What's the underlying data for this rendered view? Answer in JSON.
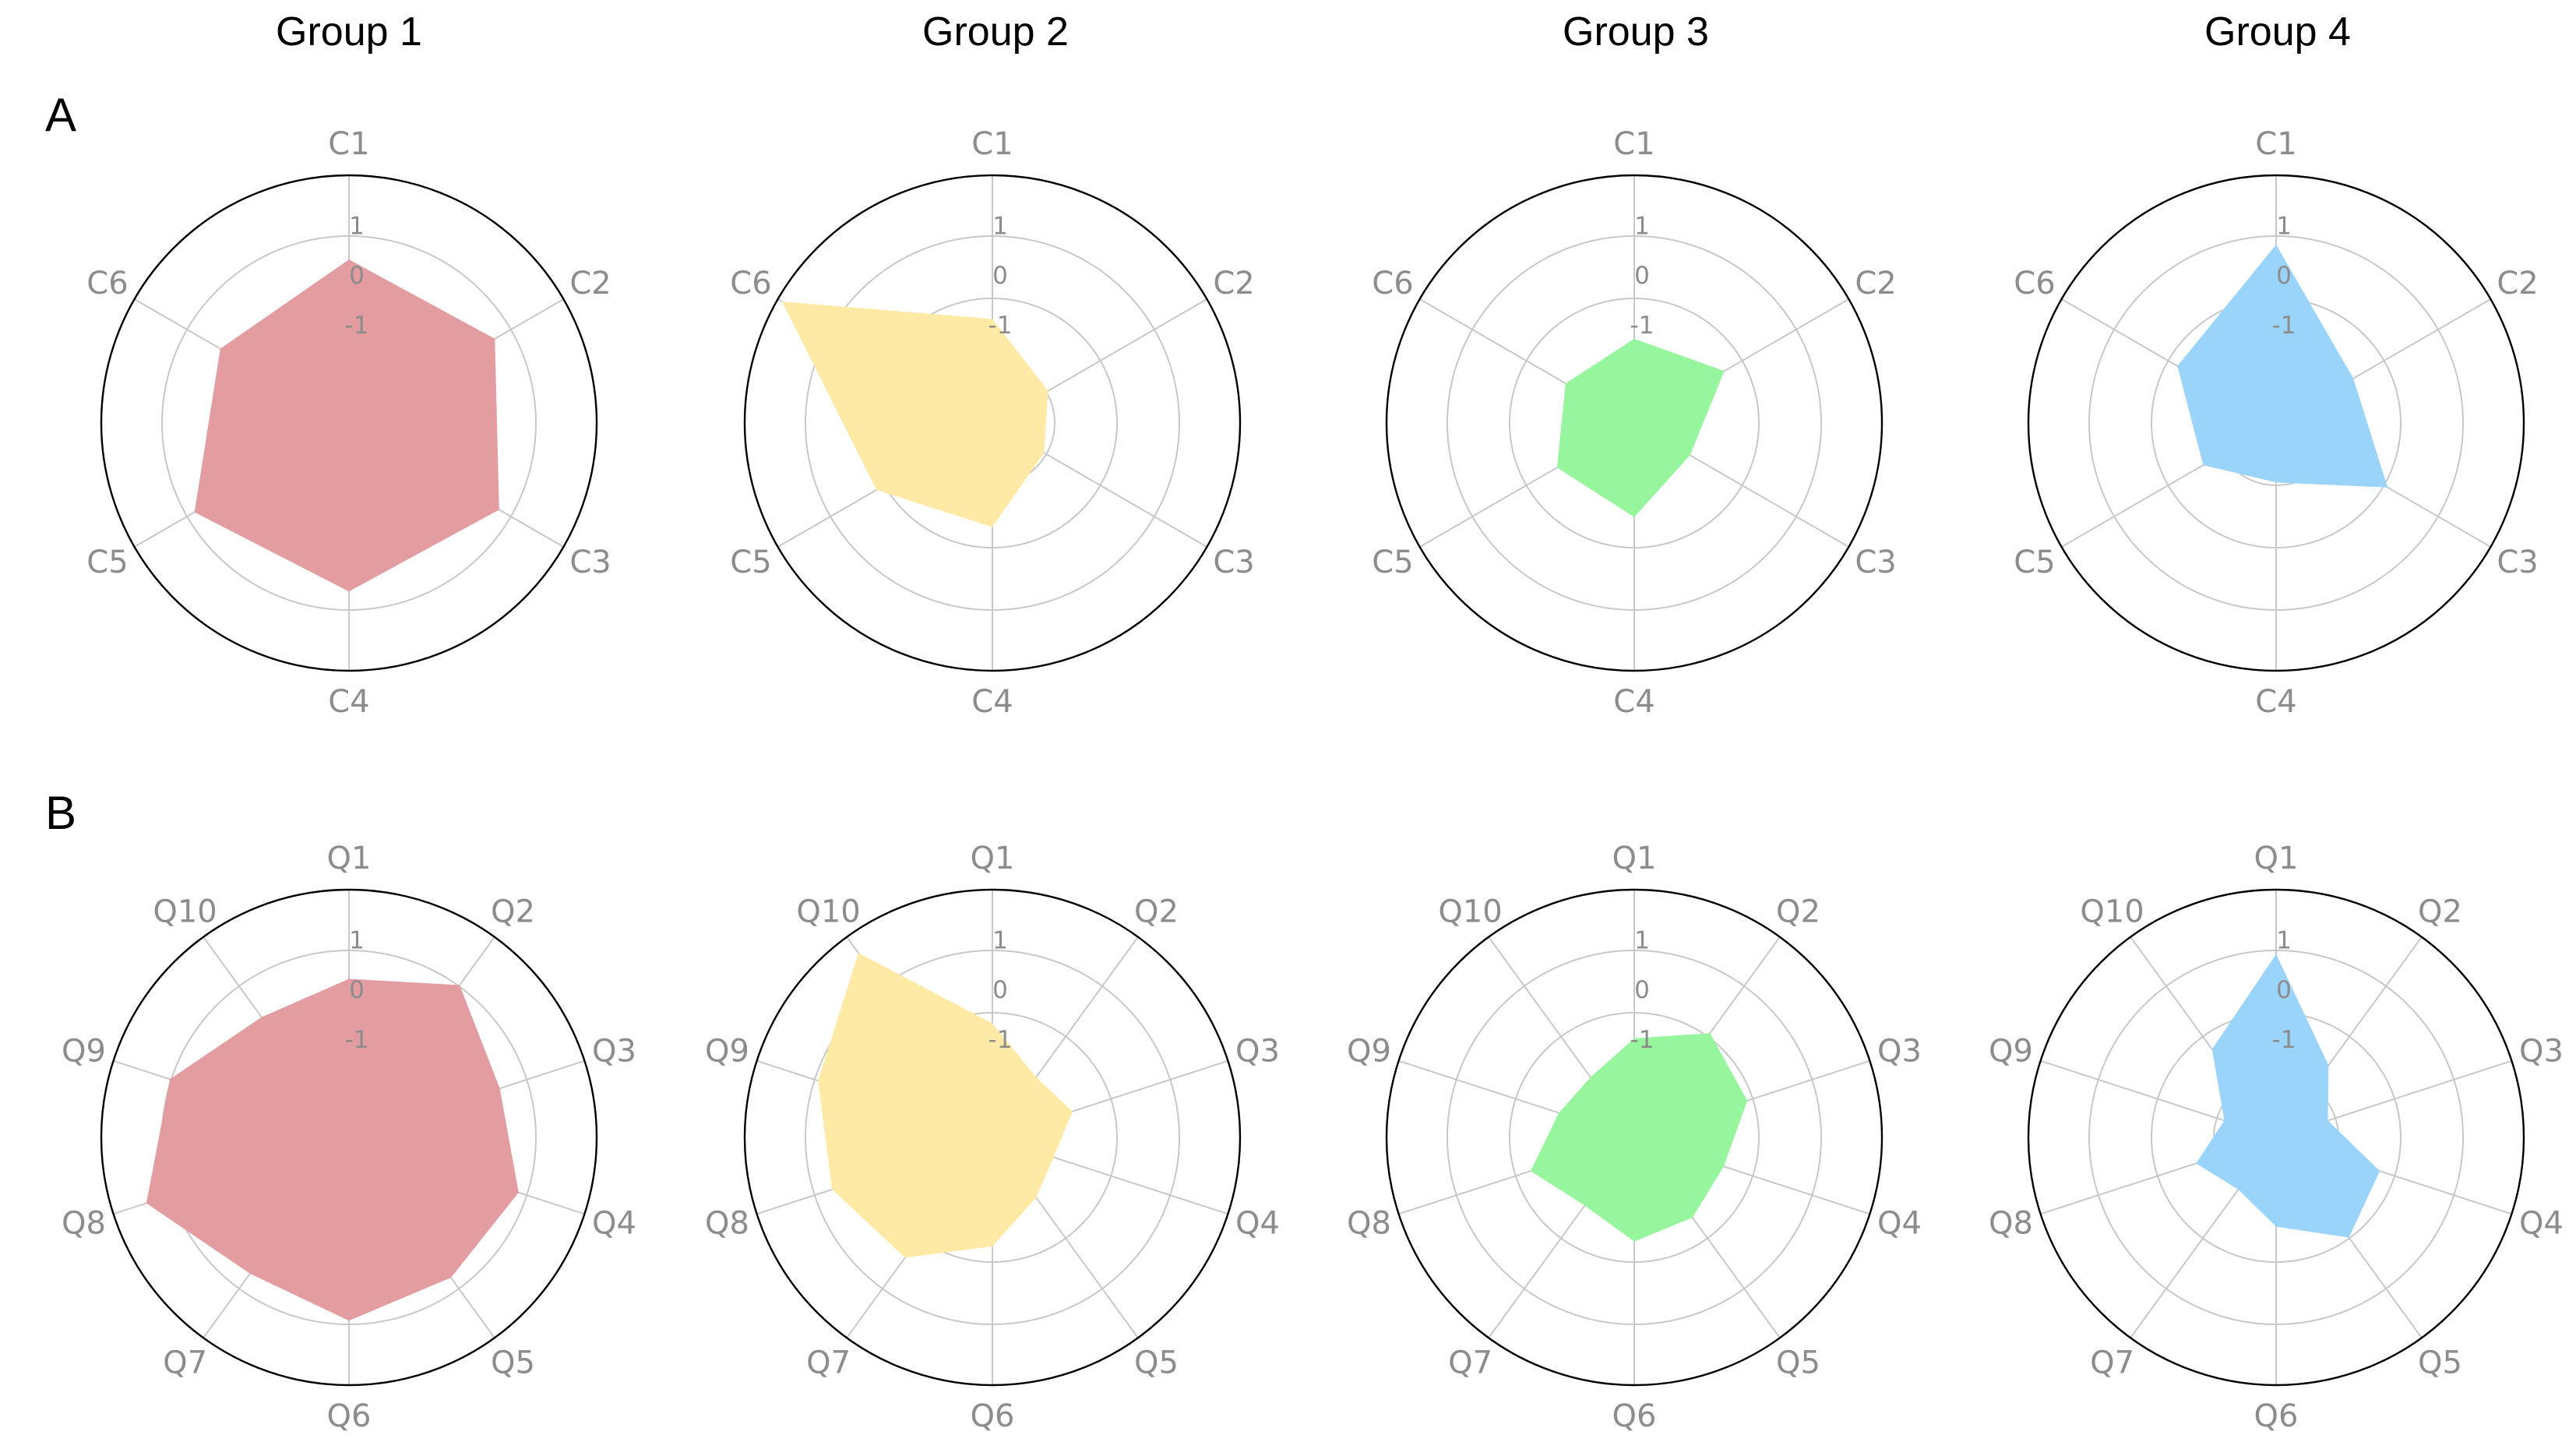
{
  "groups": [
    "Group 1",
    "Group 2",
    "Group 3",
    "Group 4"
  ],
  "rows": [
    "A",
    "B"
  ],
  "colors": [
    "#e39da1",
    "#feeaa5",
    "#97f59e",
    "#9bd4fb"
  ],
  "chart_data": [
    {
      "type": "radar",
      "row": "A",
      "group": "Group 1",
      "axes": [
        "C1",
        "C2",
        "C3",
        "C4",
        "C5",
        "C6"
      ],
      "rlim": [
        -3,
        2
      ],
      "rticks": [
        "1",
        "0",
        "-1"
      ],
      "rtick_values": [
        1,
        0,
        -1
      ],
      "grid": true,
      "values": [
        0.3,
        0.4,
        0.5,
        0.4,
        0.6,
        0.0
      ]
    },
    {
      "type": "radar",
      "row": "A",
      "group": "Group 2",
      "axes": [
        "C1",
        "C2",
        "C3",
        "C4",
        "C5",
        "C6"
      ],
      "rlim": [
        -3,
        2
      ],
      "rticks": [
        "1",
        "0",
        "-1"
      ],
      "rtick_values": [
        1,
        0,
        -1
      ],
      "grid": true,
      "values": [
        -0.9,
        -1.7,
        -1.8,
        -0.9,
        -0.3,
        1.9
      ]
    },
    {
      "type": "radar",
      "row": "A",
      "group": "Group 3",
      "axes": [
        "C1",
        "C2",
        "C3",
        "C4",
        "C5",
        "C6"
      ],
      "rlim": [
        -3,
        2
      ],
      "rticks": [
        "1",
        "0",
        "-1"
      ],
      "rtick_values": [
        1,
        0,
        -1
      ],
      "grid": true,
      "values": [
        -1.3,
        -0.9,
        -1.7,
        -1.1,
        -1.2,
        -1.4
      ]
    },
    {
      "type": "radar",
      "row": "A",
      "group": "Group 4",
      "axes": [
        "C1",
        "C2",
        "C3",
        "C4",
        "C5",
        "C6"
      ],
      "rlim": [
        -3,
        2
      ],
      "rticks": [
        "1",
        "0",
        "-1"
      ],
      "rtick_values": [
        1,
        0,
        -1
      ],
      "grid": true,
      "values": [
        0.6,
        -1.2,
        -0.4,
        -1.8,
        -1.3,
        -0.7
      ]
    },
    {
      "type": "radar",
      "row": "B",
      "group": "Group 1",
      "axes": [
        "Q1",
        "Q2",
        "Q3",
        "Q4",
        "Q5",
        "Q6",
        "Q7",
        "Q8",
        "Q9",
        "Q10"
      ],
      "rlim": [
        -3,
        2
      ],
      "rticks": [
        "1",
        "0",
        "-1"
      ],
      "rtick_values": [
        1,
        0,
        -1
      ],
      "grid": true,
      "values": [
        0.2,
        0.8,
        0.2,
        0.6,
        0.5,
        0.7,
        0.4,
        1.3,
        0.8,
        0.0
      ]
    },
    {
      "type": "radar",
      "row": "B",
      "group": "Group 2",
      "axes": [
        "Q1",
        "Q2",
        "Q3",
        "Q4",
        "Q5",
        "Q6",
        "Q7",
        "Q8",
        "Q9",
        "Q10"
      ],
      "rlim": [
        -3,
        2
      ],
      "rticks": [
        "1",
        "0",
        "-1"
      ],
      "rtick_values": [
        1,
        0,
        -1
      ],
      "grid": true,
      "values": [
        -0.7,
        -1.5,
        -1.3,
        -1.7,
        -1.5,
        -0.8,
        0.0,
        0.4,
        0.7,
        1.6
      ]
    },
    {
      "type": "radar",
      "row": "B",
      "group": "Group 3",
      "axes": [
        "Q1",
        "Q2",
        "Q3",
        "Q4",
        "Q5",
        "Q6",
        "Q7",
        "Q8",
        "Q9",
        "Q10"
      ],
      "rlim": [
        -3,
        2
      ],
      "rticks": [
        "1",
        "0",
        "-1"
      ],
      "rtick_values": [
        1,
        0,
        -1
      ],
      "grid": true,
      "values": [
        -1.0,
        -0.4,
        -0.6,
        -1.1,
        -1.0,
        -0.9,
        -1.3,
        -0.8,
        -1.4,
        -1.5
      ]
    },
    {
      "type": "radar",
      "row": "B",
      "group": "Group 4",
      "axes": [
        "Q1",
        "Q2",
        "Q3",
        "Q4",
        "Q5",
        "Q6",
        "Q7",
        "Q8",
        "Q9",
        "Q10"
      ],
      "rlim": [
        -3,
        2
      ],
      "rticks": [
        "1",
        "0",
        "-1"
      ],
      "rtick_values": [
        1,
        0,
        -1
      ],
      "grid": true,
      "values": [
        0.7,
        -1.2,
        -1.9,
        -0.8,
        -0.5,
        -1.2,
        -1.7,
        -1.3,
        -1.9,
        -0.8
      ]
    }
  ]
}
